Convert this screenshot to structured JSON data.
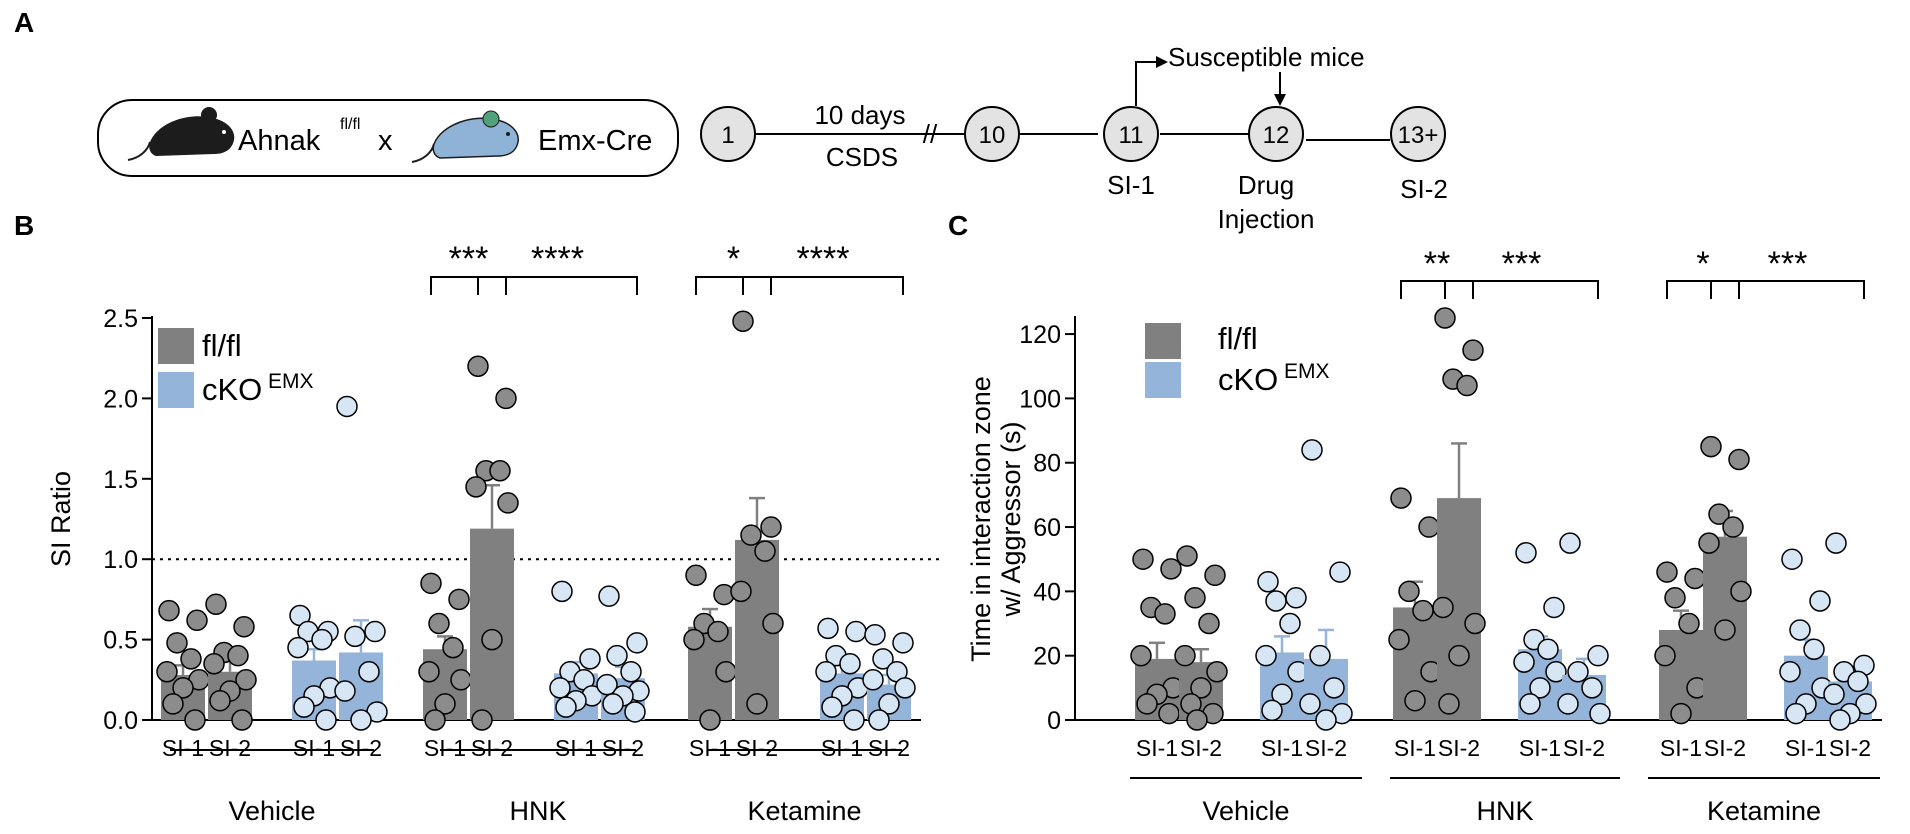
{
  "panel_labels": {
    "a": "A",
    "b": "B",
    "c": "C"
  },
  "colors": {
    "flfl": "#808080",
    "cko": "#94b4da",
    "flfl_dot": "#8c8c8c",
    "cko_dot": "#d6e6f5",
    "mouse_black": "#1c1c1c",
    "mouse_blue": "#8eb3d6",
    "mouse_ear": "#4fa27a",
    "circle": "#e3e3e3"
  },
  "schematic": {
    "cross": {
      "left_strain": "Ahnak",
      "left_sup": "fl/fl",
      "times": "x",
      "right_strain": "Emx-Cre"
    },
    "days": [
      "1",
      "10",
      "11",
      "12",
      "13+"
    ],
    "span_top": "10 days",
    "span_bottom": "CSDS",
    "break_mark": "//",
    "arrow_label": "Susceptible mice",
    "day_labels": {
      "d11": "SI-1",
      "d12_line1": "Drug",
      "d12_line2": "Injection",
      "d13": "SI-2"
    }
  },
  "chart_data": [
    {
      "type": "bar",
      "panel": "B",
      "ylabel": "SI Ratio",
      "ylim": [
        0,
        2.5
      ],
      "yticks": [
        "0.0",
        "0.5",
        "1.0",
        "1.5",
        "2.0",
        "2.5"
      ],
      "ytick_values": [
        0,
        0.5,
        1.0,
        1.5,
        2.0,
        2.5
      ],
      "reference_line": 1.0,
      "legend": {
        "flfl": "fl/fl",
        "cko": "cKO",
        "cko_sup": "EMX",
        "position": "top-left"
      },
      "groups": [
        "Vehicle",
        "HNK",
        "Ketamine"
      ],
      "bars": [
        {
          "genotype": "flfl",
          "group": "Vehicle",
          "tick": "SI-1",
          "mean": 0.28,
          "sem": 0.06,
          "points": [
            0.68,
            0.62,
            0.48,
            0.38,
            0.3,
            0.25,
            0.2,
            0.1,
            0.0
          ]
        },
        {
          "genotype": "flfl",
          "group": "Vehicle",
          "tick": "SI-2",
          "mean": 0.3,
          "sem": 0.07,
          "points": [
            0.72,
            0.58,
            0.42,
            0.4,
            0.35,
            0.25,
            0.18,
            0.12,
            0.0
          ]
        },
        {
          "genotype": "cko",
          "group": "Vehicle",
          "tick": "SI-1",
          "mean": 0.37,
          "sem": 0.07,
          "points": [
            0.65,
            0.55,
            0.55,
            0.5,
            0.45,
            0.2,
            0.15,
            0.08,
            0.0
          ]
        },
        {
          "genotype": "cko",
          "group": "Vehicle",
          "tick": "SI-2",
          "mean": 0.42,
          "sem": 0.2,
          "points": [
            1.95,
            0.55,
            0.52,
            0.3,
            0.18,
            0.05,
            0.0
          ]
        },
        {
          "genotype": "flfl",
          "group": "HNK",
          "tick": "SI-1",
          "mean": 0.44,
          "sem": 0.08,
          "points": [
            0.85,
            0.75,
            0.6,
            0.45,
            0.3,
            0.25,
            0.1,
            0.0
          ]
        },
        {
          "genotype": "flfl",
          "group": "HNK",
          "tick": "SI-2",
          "mean": 1.19,
          "sem": 0.27,
          "points": [
            2.2,
            2.0,
            1.55,
            1.55,
            1.45,
            1.35,
            0.5,
            0.0
          ]
        },
        {
          "genotype": "cko",
          "group": "HNK",
          "tick": "SI-1",
          "mean": 0.29,
          "sem": 0.07,
          "points": [
            0.8,
            0.38,
            0.3,
            0.25,
            0.2,
            0.15,
            0.12,
            0.08
          ]
        },
        {
          "genotype": "cko",
          "group": "HNK",
          "tick": "SI-2",
          "mean": 0.26,
          "sem": 0.07,
          "points": [
            0.77,
            0.48,
            0.4,
            0.3,
            0.22,
            0.18,
            0.15,
            0.1,
            0.05
          ]
        },
        {
          "genotype": "flfl",
          "group": "Ketamine",
          "tick": "SI-1",
          "mean": 0.58,
          "sem": 0.11,
          "points": [
            0.9,
            0.78,
            0.6,
            0.55,
            0.5,
            0.3,
            0.0
          ]
        },
        {
          "genotype": "flfl",
          "group": "Ketamine",
          "tick": "SI-2",
          "mean": 1.12,
          "sem": 0.26,
          "points": [
            2.48,
            1.2,
            1.15,
            1.05,
            0.8,
            0.6,
            0.1
          ]
        },
        {
          "genotype": "cko",
          "group": "Ketamine",
          "tick": "SI-1",
          "mean": 0.29,
          "sem": 0.05,
          "points": [
            0.57,
            0.55,
            0.4,
            0.35,
            0.3,
            0.2,
            0.15,
            0.08,
            0.0
          ]
        },
        {
          "genotype": "cko",
          "group": "Ketamine",
          "tick": "SI-2",
          "mean": 0.22,
          "sem": 0.06,
          "points": [
            0.53,
            0.48,
            0.38,
            0.3,
            0.25,
            0.2,
            0.1,
            0.0
          ]
        }
      ],
      "significance": [
        {
          "from": 4,
          "to": 5,
          "label": "***"
        },
        {
          "from": 5,
          "to": 7,
          "label": "****"
        },
        {
          "from": 8,
          "to": 9,
          "label": "*"
        },
        {
          "from": 9,
          "to": 11,
          "label": "****"
        }
      ]
    },
    {
      "type": "bar",
      "panel": "C",
      "ylabel_line1": "Time in interaction zone",
      "ylabel_line2": "w/ Aggressor (s)",
      "ylim": [
        0,
        125
      ],
      "yticks": [
        "0",
        "20",
        "40",
        "60",
        "80",
        "100",
        "120"
      ],
      "ytick_values": [
        0,
        20,
        40,
        60,
        80,
        100,
        120
      ],
      "legend": {
        "flfl": "fl/fl",
        "cko": "cKO",
        "cko_sup": "EMX",
        "position": "top-left"
      },
      "groups": [
        "Vehicle",
        "HNK",
        "Ketamine"
      ],
      "bars": [
        {
          "genotype": "flfl",
          "group": "Vehicle",
          "tick": "SI-1",
          "mean": 19,
          "sem": 5,
          "points": [
            50,
            47,
            35,
            33,
            20,
            10,
            8,
            5,
            2
          ]
        },
        {
          "genotype": "flfl",
          "group": "Vehicle",
          "tick": "SI-2",
          "mean": 18,
          "sem": 4,
          "points": [
            51,
            45,
            38,
            30,
            20,
            15,
            10,
            5,
            2,
            0
          ]
        },
        {
          "genotype": "cko",
          "group": "Vehicle",
          "tick": "SI-1",
          "mean": 21,
          "sem": 5,
          "points": [
            43,
            38,
            37,
            30,
            20,
            15,
            8,
            3
          ]
        },
        {
          "genotype": "cko",
          "group": "Vehicle",
          "tick": "SI-2",
          "mean": 19,
          "sem": 9,
          "points": [
            84,
            46,
            20,
            10,
            5,
            2,
            0
          ]
        },
        {
          "genotype": "flfl",
          "group": "HNK",
          "tick": "SI-1",
          "mean": 35,
          "sem": 8,
          "points": [
            69,
            60,
            40,
            34,
            25,
            15,
            6
          ]
        },
        {
          "genotype": "flfl",
          "group": "HNK",
          "tick": "SI-2",
          "mean": 69,
          "sem": 17,
          "points": [
            125,
            115,
            106,
            104,
            35,
            30,
            20,
            5
          ]
        },
        {
          "genotype": "cko",
          "group": "HNK",
          "tick": "SI-1",
          "mean": 22,
          "sem": 4,
          "points": [
            52,
            35,
            25,
            22,
            18,
            15,
            10,
            5
          ]
        },
        {
          "genotype": "cko",
          "group": "HNK",
          "tick": "SI-2",
          "mean": 14,
          "sem": 5,
          "points": [
            55,
            20,
            15,
            10,
            5,
            2
          ]
        },
        {
          "genotype": "flfl",
          "group": "Ketamine",
          "tick": "SI-1",
          "mean": 28,
          "sem": 6,
          "points": [
            46,
            44,
            38,
            30,
            20,
            10,
            2
          ]
        },
        {
          "genotype": "flfl",
          "group": "Ketamine",
          "tick": "SI-2",
          "mean": 57,
          "sem": 8,
          "points": [
            85,
            81,
            64,
            60,
            55,
            40,
            28
          ]
        },
        {
          "genotype": "cko",
          "group": "Ketamine",
          "tick": "SI-1",
          "mean": 20,
          "sem": 5,
          "points": [
            50,
            37,
            28,
            22,
            15,
            10,
            5,
            2
          ]
        },
        {
          "genotype": "cko",
          "group": "Ketamine",
          "tick": "SI-2",
          "mean": 12,
          "sem": 4,
          "points": [
            55,
            17,
            15,
            12,
            8,
            5,
            2,
            0
          ]
        }
      ],
      "significance": [
        {
          "from": 4,
          "to": 5,
          "label": "**"
        },
        {
          "from": 5,
          "to": 7,
          "label": "***"
        },
        {
          "from": 8,
          "to": 9,
          "label": "*"
        },
        {
          "from": 9,
          "to": 11,
          "label": "***"
        }
      ]
    }
  ]
}
